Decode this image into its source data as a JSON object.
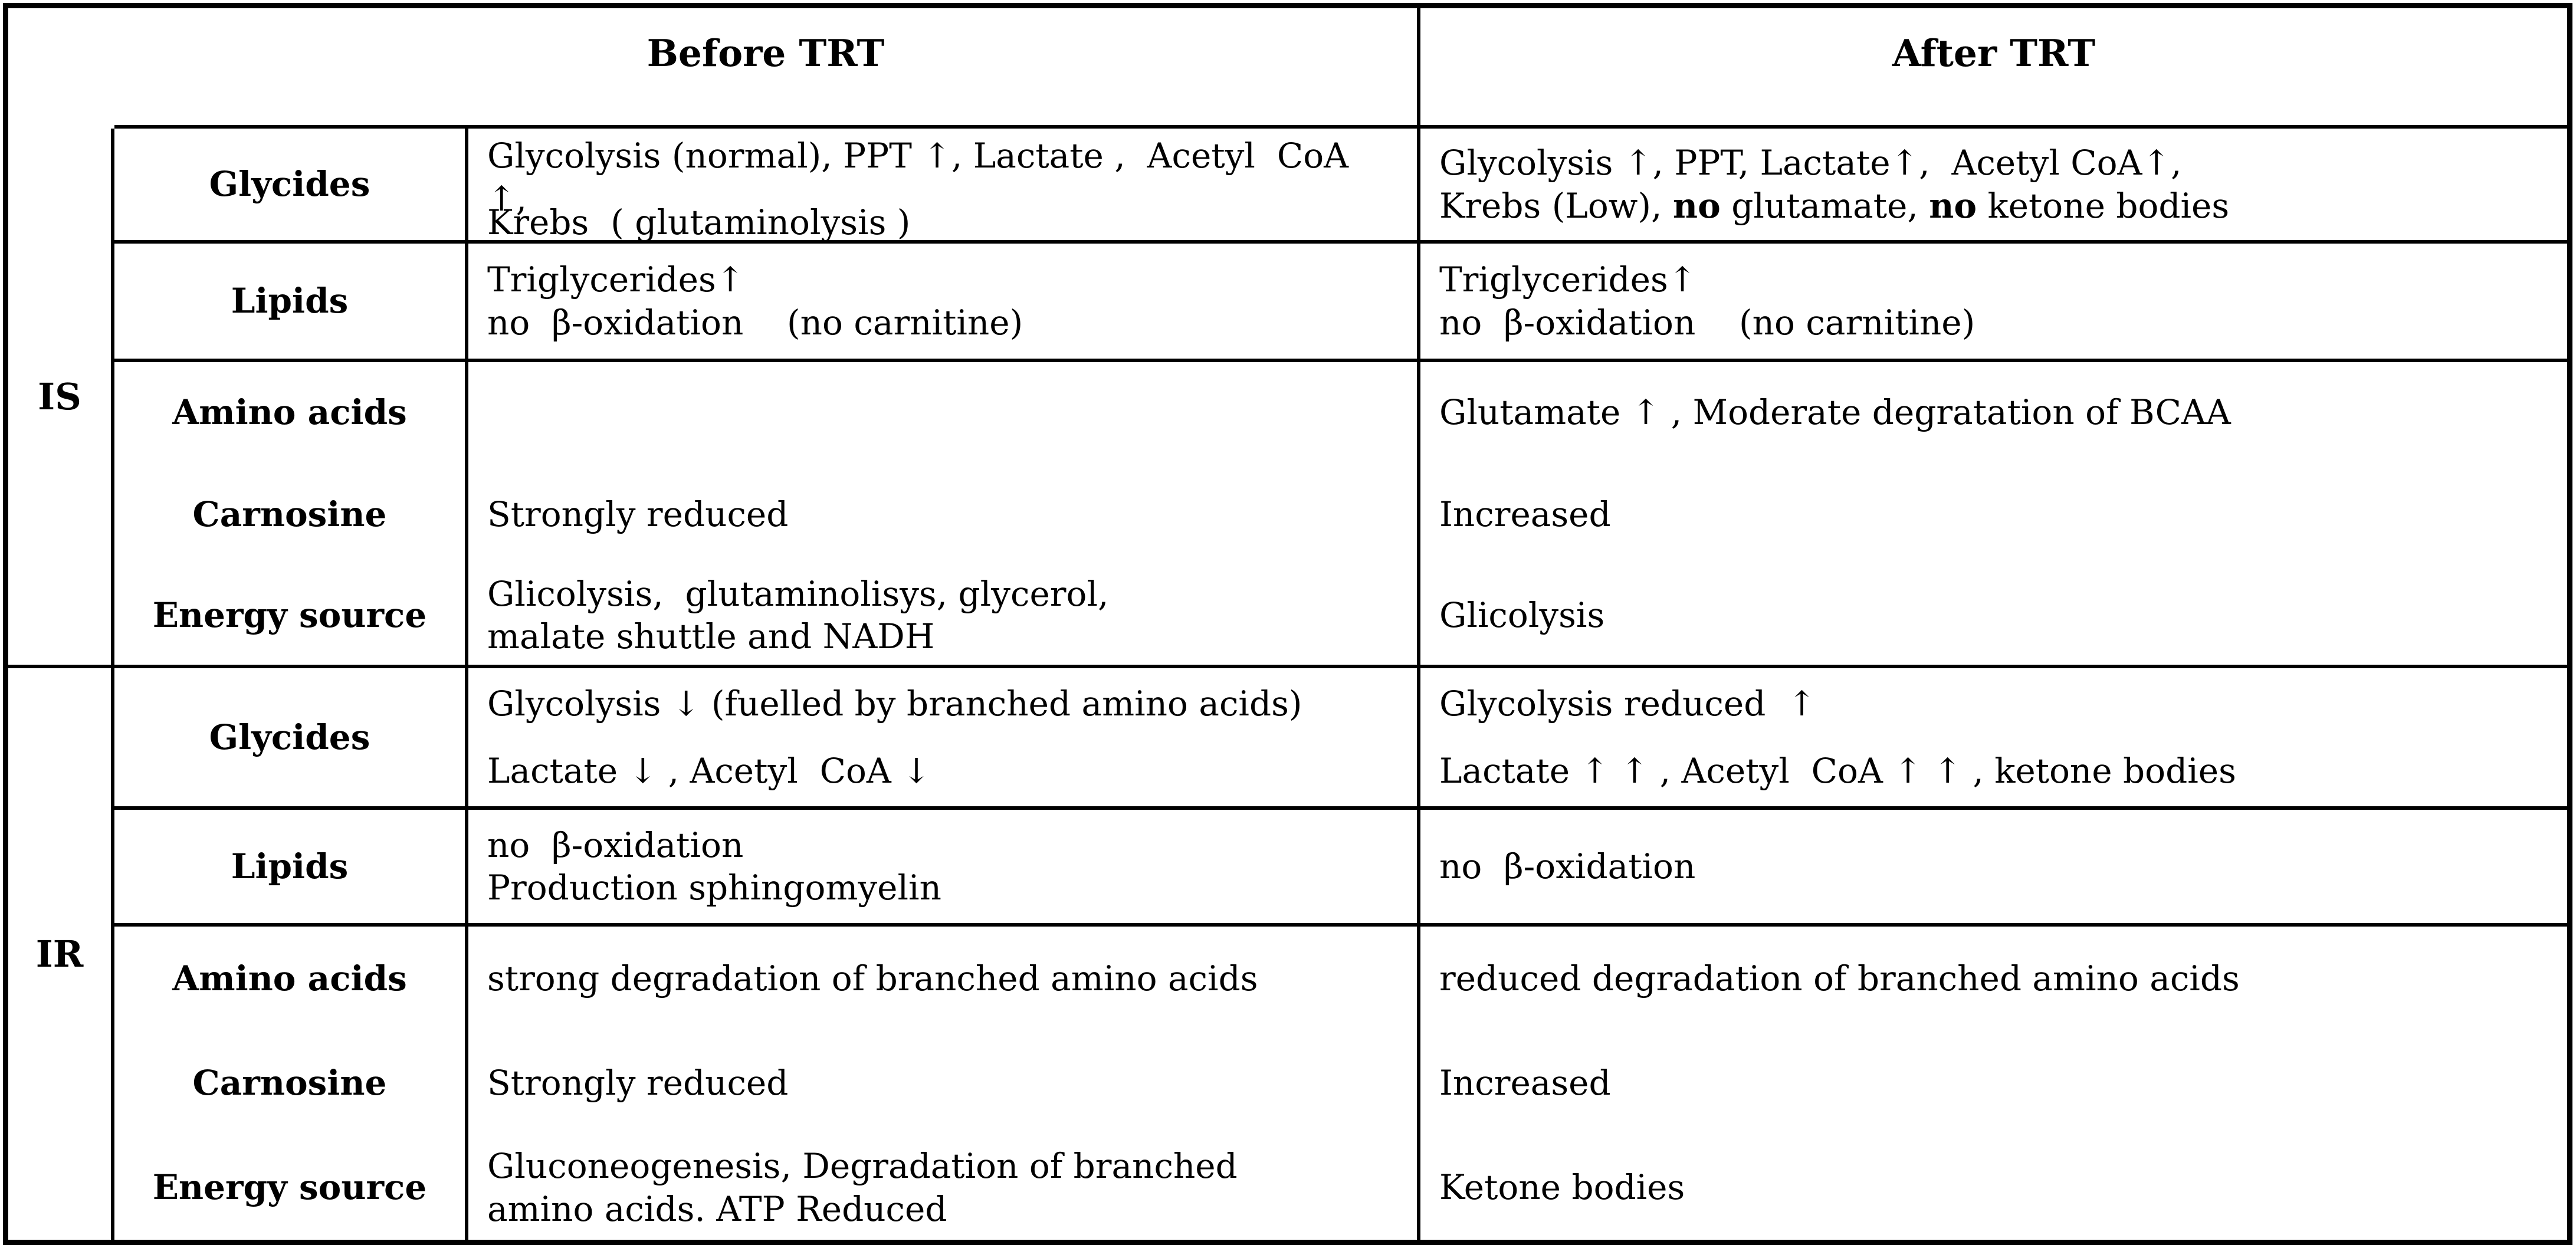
{
  "header": {
    "before_trt": "Before TRT",
    "after_trt": "After TRT"
  },
  "is": {
    "group_label": "IS",
    "glycides": {
      "label": "Glycides",
      "before": {
        "line1": "Glycolysis (normal), PPT ↑, Lactate ,  Acetyl  CoA ↑,",
        "line2": "Krebs  ( glutaminolysis )"
      },
      "after": {
        "line1": "Glycolysis ↑, PPT, Lactate↑,  Acetyl CoA↑,",
        "line2_pre": "Krebs (Low), ",
        "line2_no1": "no",
        "line2_mid": " glutamate, ",
        "line2_no2": "no",
        "line2_post": " ketone bodies"
      }
    },
    "lipids": {
      "label": "Lipids",
      "before": {
        "line1": "Triglycerides↑",
        "line2": "no  β-oxidation    (no carnitine)"
      },
      "after": {
        "line1": "Triglycerides↑",
        "line2": "no  β-oxidation    (no carnitine)"
      }
    },
    "amino_acids": {
      "label": "Amino acids",
      "before": "",
      "after": "Glutamate ↑ , Moderate degratation of BCAA"
    },
    "carnosine": {
      "label": "Carnosine",
      "before": "Strongly reduced",
      "after": "Increased"
    },
    "energy_source": {
      "label": "Energy source",
      "before": {
        "line1": "Glicolysis,  glutaminolisys, glycerol,",
        "line2": "malate shuttle and NADH"
      },
      "after": "Glicolysis"
    }
  },
  "ir": {
    "group_label": "IR",
    "glycides": {
      "label": "Glycides",
      "before": {
        "line1": "Glycolysis ↓ (fuelled by branched amino acids)",
        "line2": "Lactate ↓ , Acetyl  CoA ↓"
      },
      "after": {
        "line1": "Glycolysis reduced  ↑",
        "line2": "Lactate ↑ ↑ , Acetyl  CoA ↑ ↑ , ketone bodies"
      }
    },
    "lipids": {
      "label": "Lipids",
      "before": {
        "line1": "no  β-oxidation",
        "line2": "Production sphingomyelin"
      },
      "after": {
        "line1": "no  β-oxidation",
        "line2": ""
      }
    },
    "amino_acids": {
      "label": "Amino acids",
      "before": "strong degradation of branched amino acids",
      "after": "reduced degradation of branched amino acids"
    },
    "carnosine": {
      "label": "Carnosine",
      "before": "Strongly reduced",
      "after": "Increased"
    },
    "energy_source": {
      "label": "Energy source",
      "before": {
        "line1": "Gluconeogenesis, Degradation of branched",
        "line2": "amino acids. ATP Reduced"
      },
      "after": "Ketone bodies"
    }
  }
}
